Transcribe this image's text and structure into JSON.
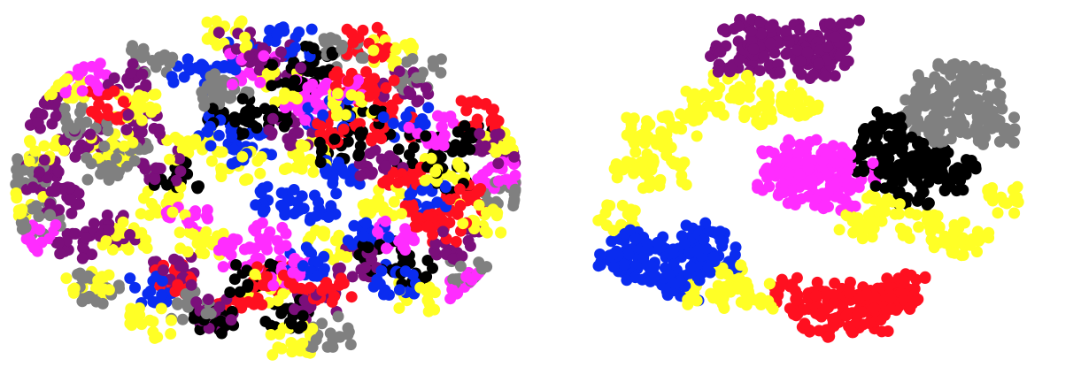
{
  "figure": {
    "background": "#ffffff"
  },
  "chart_data": [
    {
      "type": "scatter",
      "title": "",
      "xlabel": "",
      "ylabel": "",
      "axes_visible": false,
      "grid": false,
      "legend": "none",
      "marker_color_order": [
        "purple",
        "gray",
        "yellow",
        "blue",
        "red",
        "magenta",
        "black"
      ],
      "series": [
        {
          "color": "#7b0f7b",
          "points": [
            [
              -0.85,
              0.05
            ],
            [
              -0.8,
              -0.1
            ],
            [
              -0.72,
              0.22
            ],
            [
              -0.6,
              -0.25
            ],
            [
              -0.75,
              -0.35
            ],
            [
              -0.48,
              0.32
            ],
            [
              -0.35,
              -0.5
            ],
            [
              -0.1,
              0.78
            ],
            [
              0.05,
              0.7
            ],
            [
              0.35,
              -0.45
            ],
            [
              -0.9,
              0.4
            ],
            [
              -0.55,
              0.6
            ],
            [
              0.2,
              -0.7
            ],
            [
              -0.2,
              -0.75
            ],
            [
              0.55,
              0.55
            ],
            [
              0.75,
              -0.35
            ],
            [
              0.9,
              0.2
            ],
            [
              -0.4,
              0.1
            ],
            [
              0.1,
              0.3
            ],
            [
              0.45,
              0.1
            ]
          ]
        },
        {
          "color": "#808080",
          "points": [
            [
              -0.7,
              0.35
            ],
            [
              -0.62,
              0.1
            ],
            [
              -0.55,
              0.15
            ],
            [
              -0.2,
              0.5
            ],
            [
              -0.15,
              0.55
            ],
            [
              -0.88,
              -0.2
            ],
            [
              -0.3,
              -0.7
            ],
            [
              0.6,
              0.62
            ],
            [
              0.95,
              -0.05
            ],
            [
              -0.95,
              0.05
            ],
            [
              0.3,
              0.75
            ],
            [
              -0.65,
              -0.6
            ],
            [
              0.25,
              -0.85
            ],
            [
              0.8,
              -0.5
            ],
            [
              -0.45,
              0.7
            ]
          ]
        },
        {
          "color": "#ffff26",
          "points": [
            [
              -0.5,
              0.42
            ],
            [
              -0.6,
              0.2
            ],
            [
              -0.3,
              0.2
            ],
            [
              -0.4,
              -0.1
            ],
            [
              -0.55,
              -0.3
            ],
            [
              -0.1,
              0.1
            ],
            [
              0.15,
              0.15
            ],
            [
              0.25,
              -0.35
            ],
            [
              -0.25,
              -0.35
            ],
            [
              0.0,
              -0.6
            ],
            [
              0.45,
              -0.1
            ],
            [
              0.7,
              0.1
            ],
            [
              0.85,
              -0.2
            ],
            [
              -0.8,
              0.55
            ],
            [
              -0.95,
              -0.1
            ],
            [
              0.05,
              0.55
            ],
            [
              -0.7,
              -0.55
            ],
            [
              0.6,
              -0.65
            ],
            [
              0.35,
              0.45
            ],
            [
              -0.15,
              0.85
            ],
            [
              0.5,
              0.75
            ],
            [
              0.95,
              0.25
            ],
            [
              -0.45,
              -0.8
            ],
            [
              0.1,
              -0.9
            ],
            [
              -0.85,
              0.2
            ]
          ]
        },
        {
          "color": "#0a2cf0",
          "points": [
            [
              -0.1,
              0.72
            ],
            [
              0.1,
              0.8
            ],
            [
              -0.3,
              0.62
            ],
            [
              0.05,
              -0.1
            ],
            [
              0.2,
              -0.15
            ],
            [
              0.3,
              0.05
            ],
            [
              -0.05,
              0.2
            ],
            [
              0.4,
              -0.3
            ],
            [
              0.15,
              -0.45
            ],
            [
              0.55,
              0.35
            ],
            [
              0.62,
              -0.1
            ],
            [
              -0.45,
              -0.6
            ],
            [
              0.5,
              -0.55
            ],
            [
              0.25,
              0.4
            ],
            [
              -0.2,
              0.3
            ]
          ]
        },
        {
          "color": "#ff1020",
          "points": [
            [
              0.35,
              0.55
            ],
            [
              0.45,
              0.5
            ],
            [
              0.5,
              0.3
            ],
            [
              0.28,
              0.3
            ],
            [
              0.55,
              0.05
            ],
            [
              0.62,
              -0.18
            ],
            [
              0.7,
              -0.25
            ],
            [
              0.78,
              -0.1
            ],
            [
              -0.1,
              -0.65
            ],
            [
              0.05,
              -0.55
            ],
            [
              -0.35,
              -0.55
            ],
            [
              0.25,
              -0.6
            ],
            [
              0.4,
              0.8
            ],
            [
              -0.6,
              0.45
            ],
            [
              0.85,
              0.4
            ]
          ]
        },
        {
          "color": "#ff2cff",
          "points": [
            [
              0.15,
              0.5
            ],
            [
              0.2,
              0.42
            ],
            [
              0.3,
              0.55
            ],
            [
              -0.1,
              -0.4
            ],
            [
              0.0,
              -0.3
            ],
            [
              0.1,
              -0.5
            ],
            [
              -0.3,
              -0.2
            ],
            [
              0.5,
              -0.3
            ],
            [
              0.65,
              0.3
            ],
            [
              -0.05,
              0.65
            ],
            [
              -0.7,
              0.6
            ],
            [
              0.8,
              -0.6
            ],
            [
              -0.9,
              -0.3
            ],
            [
              0.92,
              0.05
            ]
          ]
        },
        {
          "color": "#000000",
          "points": [
            [
              0.1,
              0.62
            ],
            [
              0.18,
              0.7
            ],
            [
              0.0,
              0.4
            ],
            [
              -0.15,
              0.35
            ],
            [
              0.3,
              0.2
            ],
            [
              0.4,
              0.35
            ],
            [
              0.6,
              0.2
            ],
            [
              0.72,
              0.02
            ],
            [
              0.8,
              0.25
            ],
            [
              -0.05,
              -0.55
            ],
            [
              0.08,
              -0.75
            ],
            [
              -0.2,
              -0.82
            ],
            [
              0.45,
              -0.42
            ],
            [
              0.58,
              -0.5
            ],
            [
              -0.35,
              0.05
            ]
          ]
        }
      ]
    },
    {
      "type": "scatter",
      "title": "",
      "xlabel": "",
      "ylabel": "",
      "axes_visible": false,
      "grid": false,
      "legend": "none",
      "marker_color_order": [
        "purple",
        "gray",
        "yellow",
        "blue",
        "red",
        "magenta",
        "black"
      ],
      "series": [
        {
          "color": "#7b0f7b",
          "points": [
            [
              -0.2,
              0.8
            ],
            [
              -0.1,
              0.85
            ],
            [
              0.0,
              0.82
            ],
            [
              0.1,
              0.75
            ],
            [
              -0.3,
              0.72
            ],
            [
              -0.15,
              0.7
            ],
            [
              0.05,
              0.68
            ],
            [
              0.15,
              0.86
            ],
            [
              -0.25,
              0.88
            ],
            [
              -0.05,
              0.78
            ]
          ]
        },
        {
          "color": "#808080",
          "points": [
            [
              0.5,
              0.55
            ],
            [
              0.6,
              0.5
            ],
            [
              0.7,
              0.45
            ],
            [
              0.55,
              0.38
            ],
            [
              0.65,
              0.35
            ],
            [
              0.75,
              0.3
            ],
            [
              0.45,
              0.42
            ],
            [
              0.6,
              0.62
            ],
            [
              0.5,
              0.3
            ],
            [
              0.7,
              0.58
            ]
          ]
        },
        {
          "color": "#ffff26",
          "points": [
            [
              -0.6,
              0.2
            ],
            [
              -0.7,
              0.05
            ],
            [
              -0.55,
              0.05
            ],
            [
              -0.65,
              0.3
            ],
            [
              -0.5,
              0.35
            ],
            [
              -0.4,
              0.45
            ],
            [
              -0.3,
              0.55
            ],
            [
              -0.1,
              0.5
            ],
            [
              0.0,
              0.45
            ],
            [
              -0.2,
              0.4
            ],
            [
              0.55,
              -0.3
            ],
            [
              0.65,
              -0.35
            ],
            [
              0.45,
              -0.25
            ],
            [
              0.3,
              -0.15
            ],
            [
              0.2,
              -0.25
            ],
            [
              -0.3,
              -0.55
            ],
            [
              -0.2,
              -0.65
            ],
            [
              -0.4,
              -0.65
            ],
            [
              -0.75,
              -0.2
            ],
            [
              0.8,
              -0.1
            ]
          ]
        },
        {
          "color": "#0a2cf0",
          "points": [
            [
              -0.7,
              -0.35
            ],
            [
              -0.6,
              -0.4
            ],
            [
              -0.5,
              -0.35
            ],
            [
              -0.65,
              -0.5
            ],
            [
              -0.55,
              -0.55
            ],
            [
              -0.45,
              -0.45
            ],
            [
              -0.75,
              -0.45
            ],
            [
              -0.4,
              -0.3
            ],
            [
              -0.5,
              -0.6
            ],
            [
              -0.35,
              -0.45
            ]
          ]
        },
        {
          "color": "#ff1020",
          "points": [
            [
              0.0,
              -0.7
            ],
            [
              0.1,
              -0.65
            ],
            [
              0.2,
              -0.7
            ],
            [
              0.3,
              -0.65
            ],
            [
              0.05,
              -0.78
            ],
            [
              0.15,
              -0.82
            ],
            [
              0.25,
              -0.78
            ],
            [
              0.35,
              -0.72
            ],
            [
              -0.05,
              -0.62
            ],
            [
              0.4,
              -0.6
            ]
          ]
        },
        {
          "color": "#ff2cff",
          "points": [
            [
              -0.05,
              0.05
            ],
            [
              0.05,
              0.1
            ],
            [
              0.1,
              0.0
            ],
            [
              0.0,
              -0.05
            ],
            [
              -0.1,
              0.12
            ],
            [
              0.15,
              0.15
            ],
            [
              0.12,
              -0.08
            ],
            [
              -0.02,
              0.18
            ],
            [
              0.2,
              0.05
            ],
            [
              -0.12,
              -0.02
            ]
          ]
        },
        {
          "color": "#000000",
          "points": [
            [
              0.3,
              0.25
            ],
            [
              0.4,
              0.2
            ],
            [
              0.45,
              0.1
            ],
            [
              0.35,
              0.05
            ],
            [
              0.5,
              0.15
            ],
            [
              0.55,
              0.0
            ],
            [
              0.25,
              0.12
            ],
            [
              0.6,
              0.08
            ],
            [
              0.42,
              -0.05
            ],
            [
              0.32,
              0.35
            ]
          ]
        }
      ]
    }
  ]
}
